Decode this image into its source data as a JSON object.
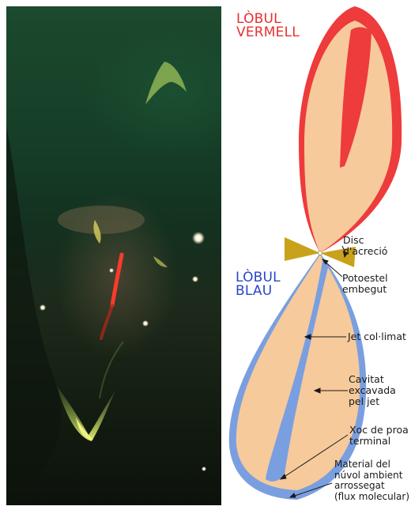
{
  "photo": {
    "alt_subject": "herbig-haro jet photograph"
  },
  "lobes": {
    "red_title": "LÒBUL\nVERMELL",
    "blue_title": "LÒBUL\nBLAU"
  },
  "labels": {
    "accretion_disk": "Disc d'acreció",
    "protostar": "Potoestel\nembegut",
    "jet": "Jet col·limat",
    "cavity": "Cavitat\nexcavada\npel jet",
    "bow_shock": "Xoc de proa\nterminal",
    "ambient": "Material del\nnúvol ambient\narrossegat\n(flux molecular)"
  },
  "colors": {
    "red_lobe": "#ee3b3b",
    "cavity_fill": "#f7ca9b",
    "blue_lobe": "#7a9fe0",
    "disk": "#c9a21b",
    "red_title": "#e82f2f",
    "blue_title": "#2747c8"
  }
}
